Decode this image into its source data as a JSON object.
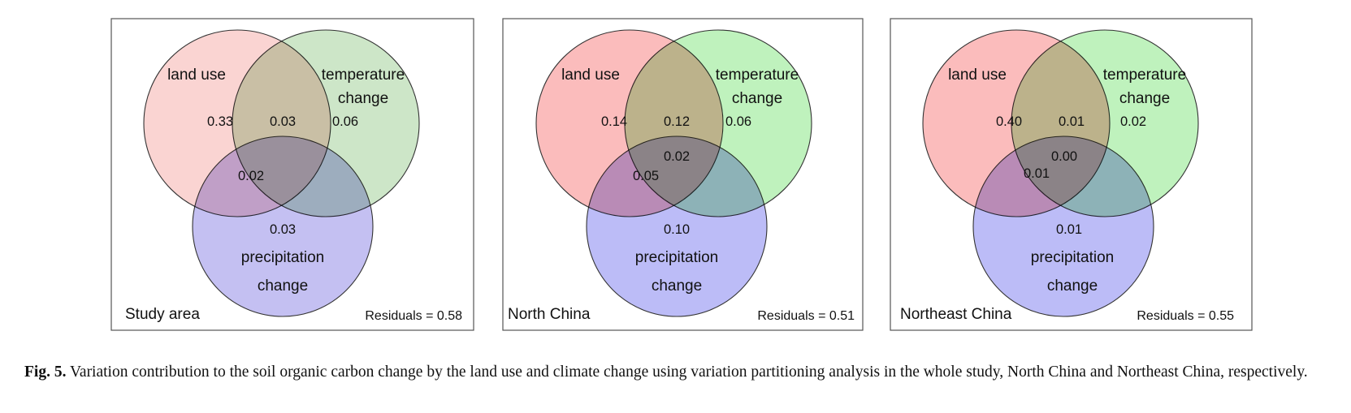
{
  "figure": {
    "panels": [
      {
        "region": "Study area",
        "residuals": "Residuals = 0.58",
        "colors": {
          "land": "#fad4d2",
          "temp": "#cde6c8",
          "precip": "#c4c0f2"
        },
        "labels": {
          "land": "land use",
          "temp_1": "temperature",
          "temp_2": "change",
          "precip_1": "precipitation",
          "precip_2": "change"
        },
        "values": {
          "land_only": "0.33",
          "land_temp": "0.03",
          "temp_only": "0.06",
          "land_precip": "0.02",
          "all_three": "",
          "precip_only": "0.03"
        }
      },
      {
        "region": "North China",
        "residuals": "Residuals = 0.51",
        "colors": {
          "land": "#fbbcbc",
          "temp": "#bff2bd",
          "precip": "#bcbcf7"
        },
        "labels": {
          "land": "land use",
          "temp_1": "temperature",
          "temp_2": "change",
          "precip_1": "precipitation",
          "precip_2": "change"
        },
        "values": {
          "land_only": "0.14",
          "land_temp": "0.12",
          "temp_only": "0.06",
          "land_precip": "0.05",
          "all_three": "0.02",
          "precip_only": "0.10"
        }
      },
      {
        "region": "Northeast China",
        "residuals": "Residuals = 0.55",
        "colors": {
          "land": "#fbbcbc",
          "temp": "#bff2bd",
          "precip": "#bcbcf7"
        },
        "labels": {
          "land": "land use",
          "temp_1": "temperature",
          "temp_2": "change",
          "precip_1": "precipitation",
          "precip_2": "change"
        },
        "values": {
          "land_only": "0.40",
          "land_temp": "0.01",
          "temp_only": "0.02",
          "land_precip": "0.01",
          "all_three": "0.00",
          "precip_only": "0.01"
        }
      }
    ]
  },
  "caption": {
    "label": "Fig. 5.",
    "text": " Variation contribution to the soil organic carbon change by the land use and climate change using variation partitioning analysis in the whole study, North China and Northeast China, respectively."
  }
}
